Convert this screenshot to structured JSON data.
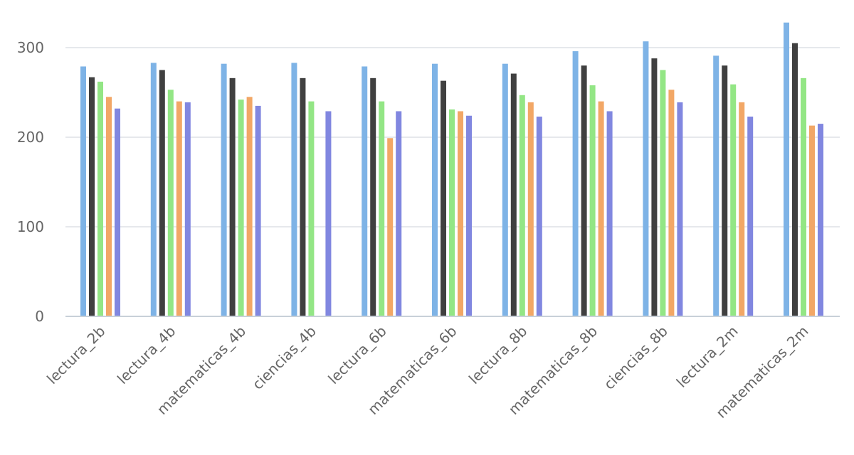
{
  "chart_data": {
    "type": "bar",
    "title": "",
    "xlabel": "",
    "ylabel": "",
    "ylim": [
      0,
      340
    ],
    "yticks": [
      0,
      100,
      200,
      300
    ],
    "grid": true,
    "legend": "none",
    "categories": [
      "lectura_2b",
      "lectura_4b",
      "matematicas_4b",
      "ciencias_4b",
      "lectura_6b",
      "matematicas_6b",
      "lectura_8b",
      "matematicas_8b",
      "ciencias_8b",
      "lectura_2m",
      "matematicas_2m"
    ],
    "series": [
      {
        "color": "#7eb3e6",
        "values": [
          279,
          283,
          282,
          283,
          279,
          282,
          282,
          296,
          307,
          291,
          328
        ]
      },
      {
        "color": "#404040",
        "values": [
          267,
          275,
          266,
          266,
          266,
          263,
          271,
          280,
          288,
          280,
          305
        ]
      },
      {
        "color": "#93e685",
        "values": [
          262,
          253,
          242,
          240,
          240,
          231,
          247,
          258,
          275,
          259,
          266
        ]
      },
      {
        "color": "#f2a766",
        "values": [
          245,
          240,
          245,
          null,
          199,
          229,
          239,
          240,
          253,
          239,
          213
        ]
      },
      {
        "color": "#8187e0",
        "values": [
          232,
          239,
          235,
          229,
          229,
          224,
          223,
          229,
          239,
          223,
          215
        ]
      }
    ]
  }
}
